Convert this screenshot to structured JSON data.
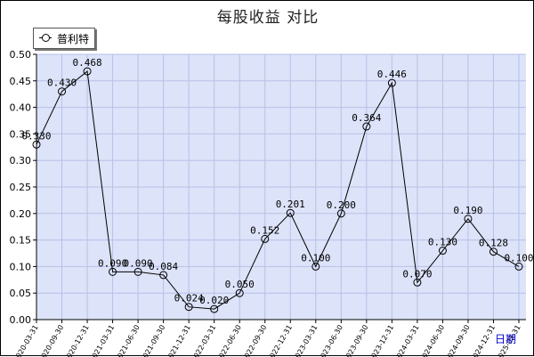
{
  "chart_data": {
    "type": "line",
    "title": "每股收益  对比",
    "xlabel": "日期",
    "ylabel": "",
    "ylim": [
      0,
      0.5
    ],
    "yticks": [
      "0.00",
      "0.05",
      "0.10",
      "0.15",
      "0.20",
      "0.25",
      "0.30",
      "0.35",
      "0.40",
      "0.45",
      "0.50"
    ],
    "categories": [
      "2020-03-31",
      "2020-09-30",
      "2020-12-31",
      "2021-03-31",
      "2021-06-30",
      "2021-09-30",
      "2021-12-31",
      "2022-03-31",
      "2022-06-30",
      "2022-09-30",
      "2022-12-31",
      "2023-03-31",
      "2023-06-30",
      "2023-09-30",
      "2023-12-31",
      "2024-03-31",
      "2024-06-30",
      "2024-09-30",
      "2024-12-31",
      "2025-03-31"
    ],
    "series": [
      {
        "name": "普利特",
        "values": [
          0.33,
          0.43,
          0.468,
          0.09,
          0.09,
          0.084,
          0.024,
          0.02,
          0.05,
          0.152,
          0.201,
          0.1,
          0.2,
          0.364,
          0.446,
          0.07,
          0.13,
          0.19,
          0.128,
          0.1
        ],
        "labels": [
          "0.330",
          "0.430",
          "0.468",
          "0.090",
          "0.090",
          "0.084",
          "0.024",
          "0.020",
          "0.050",
          "0.152",
          "0.201",
          "0.100",
          "0.200",
          "0.364",
          "0.446",
          "0.070",
          "0.130",
          "0.190",
          "0.128",
          "0.100"
        ]
      }
    ],
    "grid": true,
    "legend": "top-left",
    "colors": {
      "plot_bg": "#dde3f8",
      "grid": "#b8c0e8",
      "line": "#000000",
      "axis_name": "#0000cc"
    }
  }
}
